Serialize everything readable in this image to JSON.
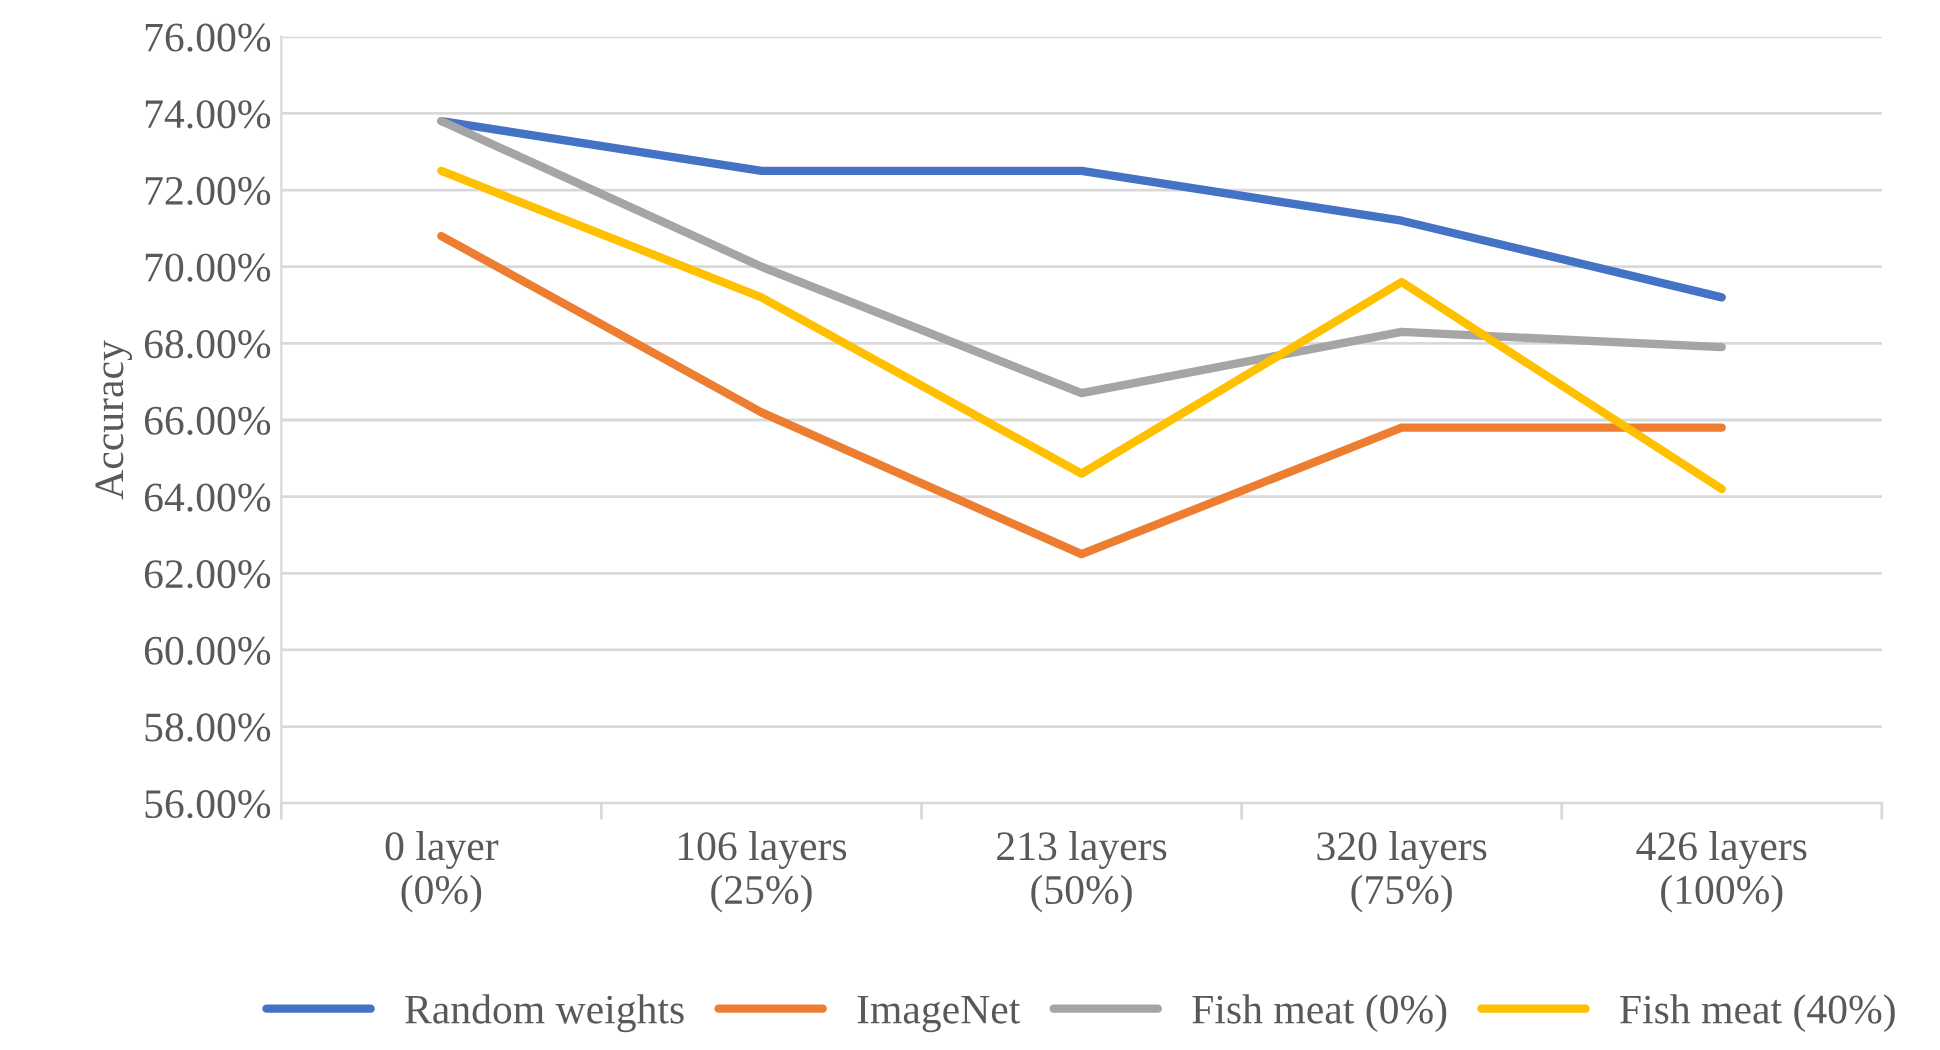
{
  "chart_data": {
    "type": "line",
    "ylabel": "Accuracy",
    "categories": [
      "0 layer\n(0%)",
      "106 layers\n(25%)",
      "213 layers\n(50%)",
      "320 layers\n(75%)",
      "426 layers\n(100%)"
    ],
    "series": [
      {
        "name": "Random weights",
        "color": "#4472c4",
        "values": [
          73.8,
          72.5,
          72.5,
          71.2,
          69.2
        ]
      },
      {
        "name": "ImageNet",
        "color": "#ed7d31",
        "values": [
          70.8,
          66.2,
          62.5,
          65.8,
          65.8
        ]
      },
      {
        "name": "Fish meat (0%)",
        "color": "#a5a5a5",
        "values": [
          73.8,
          70.0,
          66.7,
          68.3,
          67.9
        ]
      },
      {
        "name": "Fish meat (40%)",
        "color": "#ffc000",
        "values": [
          72.5,
          69.2,
          64.6,
          69.6,
          64.2
        ]
      }
    ],
    "ylim": [
      56,
      76
    ],
    "yticks": [
      {
        "value": 56,
        "label": "56.00%"
      },
      {
        "value": 58,
        "label": "58.00%"
      },
      {
        "value": 60,
        "label": "60.00%"
      },
      {
        "value": 62,
        "label": "62.00%"
      },
      {
        "value": 64,
        "label": "64.00%"
      },
      {
        "value": 66,
        "label": "66.00%"
      },
      {
        "value": 68,
        "label": "68.00%"
      },
      {
        "value": 70,
        "label": "70.00%"
      },
      {
        "value": 72,
        "label": "72.00%"
      },
      {
        "value": 74,
        "label": "74.00%"
      },
      {
        "value": 76,
        "label": "76.00%"
      }
    ],
    "grid": "y",
    "legend": "bottom",
    "marker": "none",
    "line_style": "solid"
  }
}
